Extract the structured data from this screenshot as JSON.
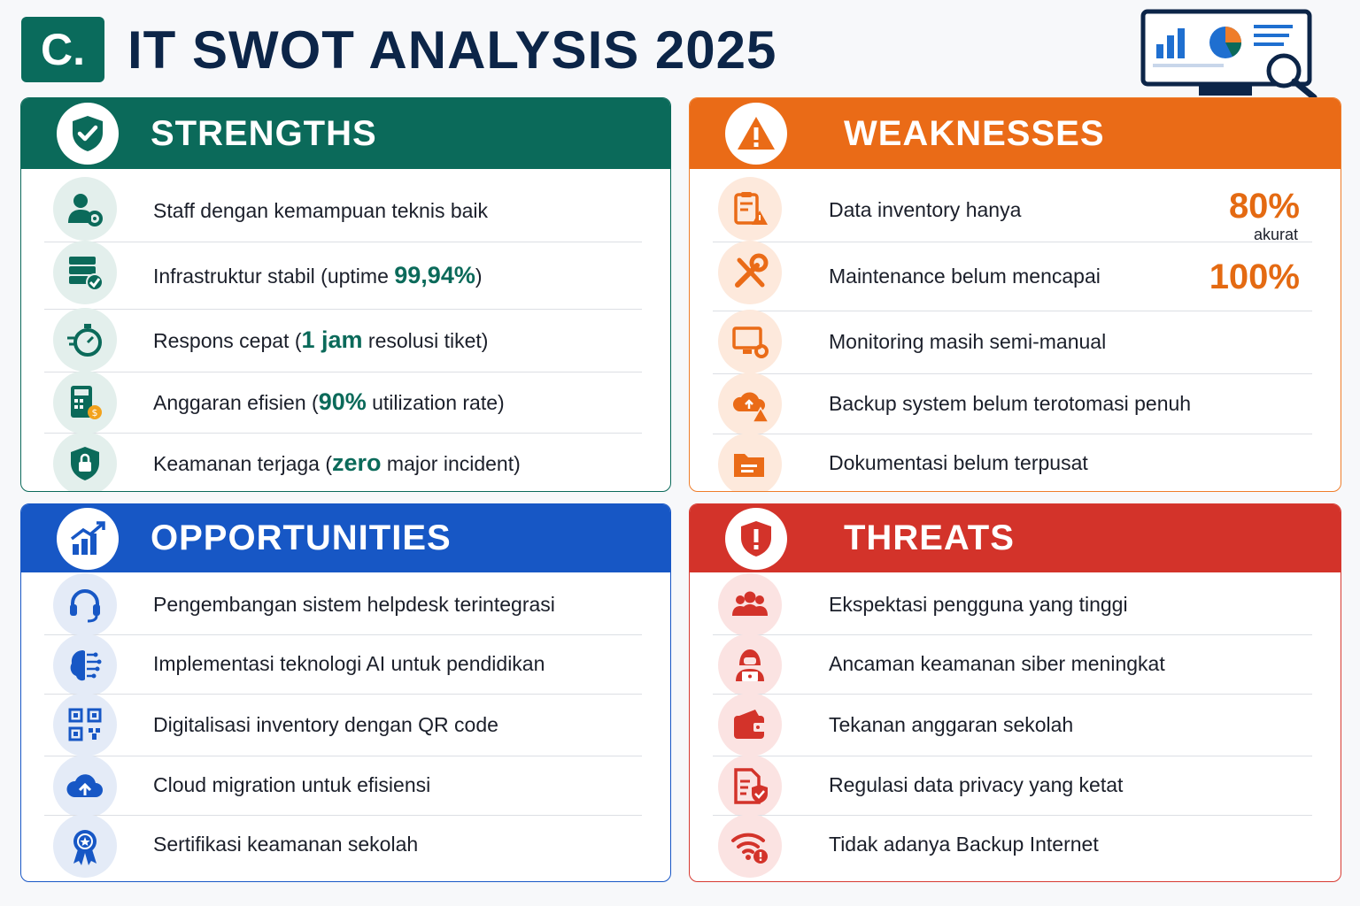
{
  "title": {
    "badge": "C.",
    "text": "IT SWOT ANALYSIS 2025"
  },
  "colors": {
    "strengths": "#0b6a5a",
    "weaknesses": "#ea6b17",
    "opportunities": "#1757c5",
    "threats": "#d3332a",
    "title": "#0c2548"
  },
  "header_icon": "monitor-analytics-icon",
  "strengths": {
    "title": "STRENGTHS",
    "icon": "shield-check-icon",
    "items": [
      {
        "icon": "user-gear-icon",
        "pre": "Staff dengan kemampuan teknis baik",
        "hl": "",
        "post": ""
      },
      {
        "icon": "server-check-icon",
        "pre": "Infrastruktur stabil (uptime ",
        "hl": "99,94%",
        "post": ")"
      },
      {
        "icon": "stopwatch-icon",
        "pre": "Respons cepat (",
        "hl": "1 jam",
        "post": " resolusi tiket)"
      },
      {
        "icon": "calculator-coin-icon",
        "pre": "Anggaran efisien (",
        "hl": "90%",
        "post": " utilization rate)"
      },
      {
        "icon": "shield-lock-icon",
        "pre": "Keamanan terjaga (",
        "hl": "zero",
        "post": " major incident)"
      }
    ]
  },
  "weaknesses": {
    "title": "WEAKNESSES",
    "icon": "warning-triangle-icon",
    "items": [
      {
        "icon": "clipboard-warning-icon",
        "text": "Data inventory hanya",
        "value": "80%",
        "sub": "akurat"
      },
      {
        "icon": "wrench-screwdriver-icon",
        "text": "Maintenance belum mencapai",
        "value": "100%",
        "sub": ""
      },
      {
        "icon": "monitor-gear-icon",
        "text": "Monitoring masih semi-manual",
        "value": "",
        "sub": ""
      },
      {
        "icon": "cloud-warning-icon",
        "text": "Backup system belum terotomasi penuh",
        "value": "",
        "sub": ""
      },
      {
        "icon": "folder-icon",
        "text": "Dokumentasi belum terpusat",
        "value": "",
        "sub": ""
      }
    ]
  },
  "opportunities": {
    "title": "OPPORTUNITIES",
    "icon": "growth-chart-icon",
    "items": [
      {
        "icon": "headset-icon",
        "text": "Pengembangan sistem helpdesk terintegrasi"
      },
      {
        "icon": "ai-brain-icon",
        "text": "Implementasi teknologi AI untuk pendidikan"
      },
      {
        "icon": "qr-code-icon",
        "text": "Digitalisasi inventory dengan QR code"
      },
      {
        "icon": "cloud-upload-icon",
        "text": "Cloud migration untuk efisiensi"
      },
      {
        "icon": "award-badge-icon",
        "text": "Sertifikasi keamanan sekolah"
      }
    ]
  },
  "threats": {
    "title": "THREATS",
    "icon": "shield-alert-icon",
    "items": [
      {
        "icon": "users-group-icon",
        "text": "Ekspektasi pengguna yang tinggi"
      },
      {
        "icon": "hacker-icon",
        "text": "Ancaman keamanan siber meningkat"
      },
      {
        "icon": "wallet-icon",
        "text": "Tekanan anggaran sekolah"
      },
      {
        "icon": "document-shield-icon",
        "text": "Regulasi data privacy yang ketat"
      },
      {
        "icon": "wifi-alert-icon",
        "text": "Tidak adanya Backup Internet"
      }
    ]
  }
}
